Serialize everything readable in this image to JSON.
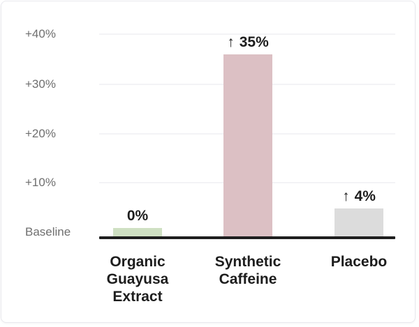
{
  "chart_data": {
    "type": "bar",
    "title": "",
    "xlabel": "",
    "ylabel": "",
    "categories": [
      "Organic Guayusa Extract",
      "Synthetic Caffeine",
      "Placebo"
    ],
    "values": [
      0,
      35,
      4
    ],
    "value_labels": [
      {
        "arrow": false,
        "text": "0%"
      },
      {
        "arrow": true,
        "text": "35%"
      },
      {
        "arrow": true,
        "text": "4%"
      }
    ],
    "up_arrow_glyph": "↑",
    "bar_colors": [
      "#cfe0c3",
      "#dcc0c4",
      "#dcdcdc"
    ],
    "yticks": [
      "+40%",
      "+30%",
      "+20%",
      "+10%"
    ],
    "baseline_label": "Baseline",
    "ylim_pct": [
      0,
      40
    ],
    "grid": true,
    "legend": false
  },
  "colors": {
    "background": "#ffffff",
    "card_border": "#e9e9ee",
    "gridline": "#f3f3f6",
    "axis_line": "#1f1f1f",
    "tick_label": "#6f6f6f",
    "data_label": "#1d1d1d",
    "bar_green": "#cfe0c3",
    "bar_pink": "#dcc0c4",
    "bar_gray": "#dcdcdc"
  }
}
